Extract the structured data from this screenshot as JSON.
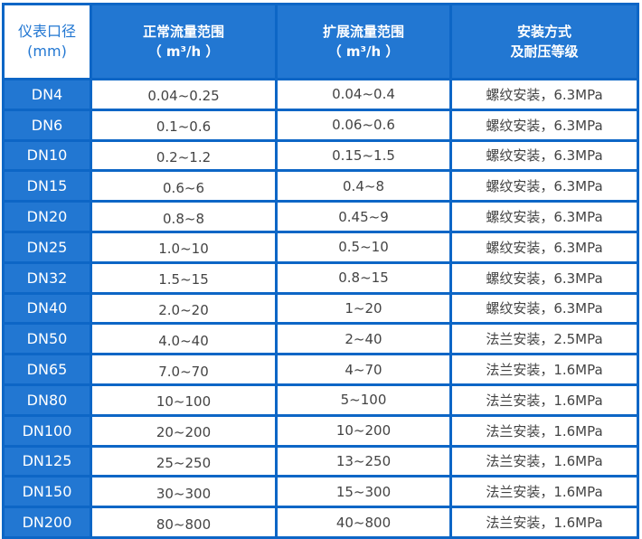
{
  "header": {
    "col1": [
      "仪表口径",
      "(mm)"
    ],
    "col2": [
      "正常流量范围",
      "（ m³/h ）"
    ],
    "col3": [
      "扩展流量范围",
      "（ m³/h ）"
    ],
    "col4": [
      "安装方式",
      "及耐压等级"
    ]
  },
  "rows": [
    {
      "dn": "DN4",
      "normal": "0.04~0.25",
      "extended": "0.04~0.4",
      "install": "螺纹安装，6.3MPa"
    },
    {
      "dn": "DN6",
      "normal": "0.1~0.6",
      "extended": "0.06~0.6",
      "install": "螺纹安装，6.3MPa"
    },
    {
      "dn": "DN10",
      "normal": "0.2~1.2",
      "extended": "0.15~1.5",
      "install": "螺纹安装，6.3MPa"
    },
    {
      "dn": "DN15",
      "normal": "0.6~6",
      "extended": "0.4~8",
      "install": "螺纹安装，6.3MPa"
    },
    {
      "dn": "DN20",
      "normal": "0.8~8",
      "extended": "0.45~9",
      "install": "螺纹安装，6.3MPa"
    },
    {
      "dn": "DN25",
      "normal": "1.0~10",
      "extended": "0.5~10",
      "install": "螺纹安装，6.3MPa"
    },
    {
      "dn": "DN32",
      "normal": "1.5~15",
      "extended": "0.8~15",
      "install": "螺纹安装，6.3MPa"
    },
    {
      "dn": "DN40",
      "normal": "2.0~20",
      "extended": "1~20",
      "install": "螺纹安装，6.3MPa"
    },
    {
      "dn": "DN50",
      "normal": "4.0~40",
      "extended": "2~40",
      "install": "法兰安装，2.5MPa"
    },
    {
      "dn": "DN65",
      "normal": "7.0~70",
      "extended": "4~70",
      "install": "法兰安装，1.6MPa"
    },
    {
      "dn": "DN80",
      "normal": "10~100",
      "extended": "5~100",
      "install": "法兰安装，1.6MPa"
    },
    {
      "dn": "DN100",
      "normal": "20~200",
      "extended": "10~200",
      "install": "法兰安装，1.6MPa"
    },
    {
      "dn": "DN125",
      "normal": "25~250",
      "extended": "13~250",
      "install": "法兰安装，1.6MPa"
    },
    {
      "dn": "DN150",
      "normal": "30~300",
      "extended": "15~300",
      "install": "法兰安装，1.6MPa"
    },
    {
      "dn": "DN200",
      "normal": "80~800",
      "extended": "40~800",
      "install": "法兰安装，1.6MPa"
    }
  ]
}
